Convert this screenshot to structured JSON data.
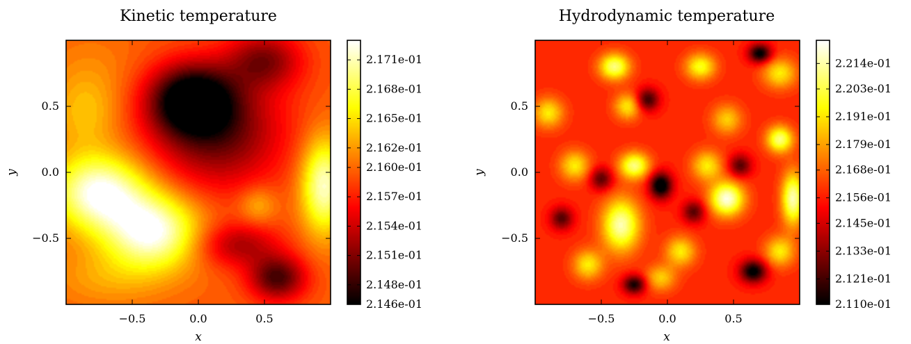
{
  "chart_data": [
    {
      "type": "heatmap",
      "title": "Kinetic temperature",
      "xlabel": "x",
      "ylabel": "y",
      "xlim": [
        -1,
        1
      ],
      "ylim": [
        -1,
        1
      ],
      "xticks": [
        -0.5,
        0.0,
        0.5
      ],
      "yticks": [
        -0.5,
        0.0,
        0.5
      ],
      "xtick_labels": [
        "−0.5",
        "0.0",
        "0.5"
      ],
      "ytick_labels": [
        "−0.5",
        "0.0",
        "0.5"
      ],
      "colormap": "hot",
      "grid": false,
      "colorbar": {
        "min": 0.2146,
        "max": 0.2173,
        "ticks": [
          0.2146,
          0.2148,
          0.2151,
          0.2154,
          0.2157,
          0.216,
          0.2162,
          0.2165,
          0.2168,
          0.2171
        ],
        "tick_labels": [
          "2.146e-01",
          "2.148e-01",
          "2.151e-01",
          "2.154e-01",
          "2.157e-01",
          "2.160e-01",
          "2.162e-01",
          "2.165e-01",
          "2.168e-01",
          "2.171e-01"
        ]
      },
      "field": {
        "base": 0.5,
        "features": [
          {
            "x": -0.05,
            "y": 0.55,
            "sx": 0.22,
            "sy": 0.18,
            "a": -0.55
          },
          {
            "x": 0.15,
            "y": 0.3,
            "sx": 0.35,
            "sy": 0.3,
            "a": -0.35
          },
          {
            "x": 0.5,
            "y": 0.85,
            "sx": 0.2,
            "sy": 0.15,
            "a": -0.3
          },
          {
            "x": 0.6,
            "y": -0.8,
            "sx": 0.15,
            "sy": 0.12,
            "a": -0.4
          },
          {
            "x": 0.3,
            "y": -0.55,
            "sx": 0.22,
            "sy": 0.12,
            "a": -0.25
          },
          {
            "x": -0.75,
            "y": -0.15,
            "sx": 0.25,
            "sy": 0.2,
            "a": 0.5
          },
          {
            "x": -0.35,
            "y": -0.45,
            "sx": 0.25,
            "sy": 0.2,
            "a": 0.5
          },
          {
            "x": 0.95,
            "y": -0.1,
            "sx": 0.12,
            "sy": 0.25,
            "a": 0.45
          },
          {
            "x": -0.85,
            "y": 0.45,
            "sx": 0.18,
            "sy": 0.2,
            "a": 0.15
          },
          {
            "x": 0.45,
            "y": -0.25,
            "sx": 0.1,
            "sy": 0.1,
            "a": 0.15
          },
          {
            "x": -0.8,
            "y": 0.8,
            "sx": 0.25,
            "sy": 0.2,
            "a": 0.05
          },
          {
            "x": -0.7,
            "y": -0.8,
            "sx": 0.3,
            "sy": 0.15,
            "a": 0.1
          }
        ]
      }
    },
    {
      "type": "heatmap",
      "title": "Hydrodynamic temperature",
      "xlabel": "x",
      "ylabel": "y",
      "xlim": [
        -1,
        1
      ],
      "ylim": [
        -1,
        1
      ],
      "xticks": [
        -0.5,
        0.0,
        0.5
      ],
      "yticks": [
        -0.5,
        0.0,
        0.5
      ],
      "xtick_labels": [
        "−0.5",
        "0.0",
        "0.5"
      ],
      "ytick_labels": [
        "−0.5",
        "0.0",
        "0.5"
      ],
      "colormap": "hot",
      "grid": false,
      "colorbar": {
        "min": 0.211,
        "max": 0.2224,
        "ticks": [
          0.211,
          0.2121,
          0.2133,
          0.2145,
          0.2156,
          0.2168,
          0.2179,
          0.2191,
          0.2203,
          0.2214
        ],
        "tick_labels": [
          "2.110e-01",
          "2.121e-01",
          "2.133e-01",
          "2.145e-01",
          "2.156e-01",
          "2.168e-01",
          "2.179e-01",
          "2.191e-01",
          "2.203e-01",
          "2.214e-01"
        ]
      },
      "field": {
        "base": 0.42,
        "features": [
          {
            "x": -0.4,
            "y": 0.8,
            "sx": 0.08,
            "sy": 0.07,
            "a": 0.45
          },
          {
            "x": 0.25,
            "y": 0.8,
            "sx": 0.08,
            "sy": 0.07,
            "a": 0.35
          },
          {
            "x": 0.85,
            "y": 0.75,
            "sx": 0.09,
            "sy": 0.08,
            "a": 0.3
          },
          {
            "x": -0.9,
            "y": 0.45,
            "sx": 0.08,
            "sy": 0.08,
            "a": 0.3
          },
          {
            "x": -0.3,
            "y": 0.5,
            "sx": 0.07,
            "sy": 0.07,
            "a": 0.3
          },
          {
            "x": 0.45,
            "y": 0.4,
            "sx": 0.08,
            "sy": 0.08,
            "a": 0.25
          },
          {
            "x": 0.85,
            "y": 0.25,
            "sx": 0.07,
            "sy": 0.07,
            "a": 0.45
          },
          {
            "x": -0.7,
            "y": 0.05,
            "sx": 0.08,
            "sy": 0.08,
            "a": 0.3
          },
          {
            "x": -0.25,
            "y": 0.05,
            "sx": 0.08,
            "sy": 0.07,
            "a": 0.45
          },
          {
            "x": 0.3,
            "y": 0.05,
            "sx": 0.08,
            "sy": 0.08,
            "a": 0.3
          },
          {
            "x": 0.45,
            "y": -0.2,
            "sx": 0.09,
            "sy": 0.09,
            "a": 0.55
          },
          {
            "x": 0.95,
            "y": -0.2,
            "sx": 0.06,
            "sy": 0.14,
            "a": 0.5
          },
          {
            "x": -0.35,
            "y": -0.4,
            "sx": 0.1,
            "sy": 0.14,
            "a": 0.5
          },
          {
            "x": -0.6,
            "y": -0.7,
            "sx": 0.08,
            "sy": 0.08,
            "a": 0.3
          },
          {
            "x": 0.1,
            "y": -0.6,
            "sx": 0.08,
            "sy": 0.08,
            "a": 0.3
          },
          {
            "x": 0.85,
            "y": -0.6,
            "sx": 0.08,
            "sy": 0.08,
            "a": 0.3
          },
          {
            "x": -0.05,
            "y": -0.8,
            "sx": 0.08,
            "sy": 0.07,
            "a": 0.25
          },
          {
            "x": -0.05,
            "y": -0.1,
            "sx": 0.06,
            "sy": 0.07,
            "a": -0.5
          },
          {
            "x": 0.65,
            "y": -0.75,
            "sx": 0.07,
            "sy": 0.06,
            "a": -0.45
          },
          {
            "x": 0.7,
            "y": 0.9,
            "sx": 0.06,
            "sy": 0.05,
            "a": -0.45
          },
          {
            "x": -0.25,
            "y": -0.85,
            "sx": 0.06,
            "sy": 0.05,
            "a": -0.4
          },
          {
            "x": -0.15,
            "y": 0.55,
            "sx": 0.06,
            "sy": 0.06,
            "a": -0.35
          },
          {
            "x": 0.55,
            "y": 0.05,
            "sx": 0.06,
            "sy": 0.06,
            "a": -0.3
          },
          {
            "x": -0.5,
            "y": -0.05,
            "sx": 0.06,
            "sy": 0.06,
            "a": -0.3
          },
          {
            "x": 0.2,
            "y": -0.3,
            "sx": 0.06,
            "sy": 0.06,
            "a": -0.3
          },
          {
            "x": -0.8,
            "y": -0.35,
            "sx": 0.06,
            "sy": 0.06,
            "a": -0.3
          }
        ]
      }
    }
  ]
}
